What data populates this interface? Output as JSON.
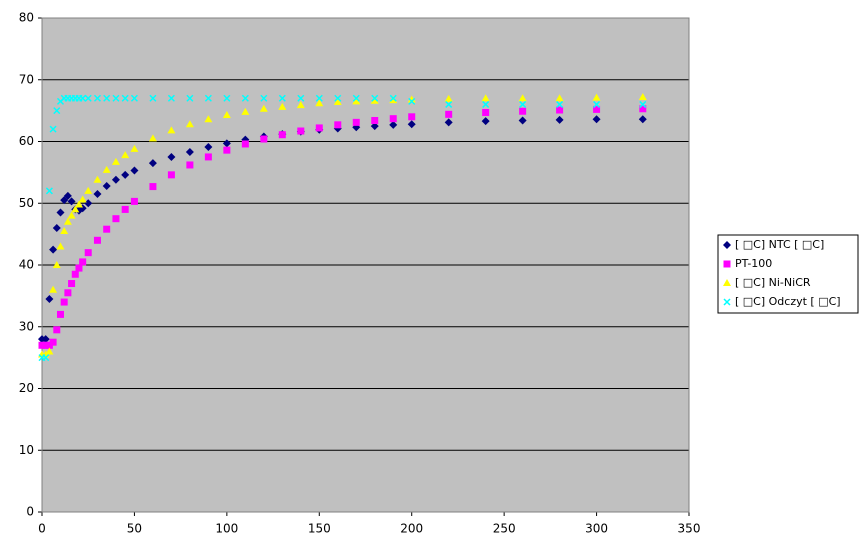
{
  "chart_data": {
    "type": "scatter",
    "x": [
      0,
      2,
      4,
      6,
      8,
      10,
      12,
      14,
      16,
      18,
      20,
      22,
      25,
      30,
      35,
      40,
      45,
      50,
      60,
      70,
      80,
      90,
      100,
      110,
      120,
      130,
      140,
      150,
      160,
      170,
      180,
      190,
      200,
      220,
      240,
      260,
      280,
      300,
      325
    ],
    "series": [
      {
        "name": "[ □C] NTC [ □C]",
        "color": "#000080",
        "marker": "diamond",
        "values": [
          28,
          28,
          34.5,
          42.5,
          46,
          48.5,
          50.5,
          51.2,
          50.3,
          49,
          48.8,
          49.2,
          50,
          51.5,
          52.8,
          53.8,
          54.6,
          55.3,
          56.5,
          57.5,
          58.3,
          59.1,
          59.7,
          60.3,
          60.8,
          61.2,
          61.6,
          61.9,
          62.1,
          62.3,
          62.5,
          62.7,
          62.8,
          63.1,
          63.3,
          63.4,
          63.5,
          63.6,
          63.6
        ]
      },
      {
        "name": "PT-100",
        "color": "#ff00ff",
        "marker": "square",
        "values": [
          27,
          27,
          27,
          27.5,
          29.5,
          32,
          34,
          35.5,
          37,
          38.5,
          39.5,
          40.5,
          42,
          44,
          45.8,
          47.5,
          49,
          50.3,
          52.7,
          54.6,
          56.2,
          57.5,
          58.6,
          59.6,
          60.4,
          61.1,
          61.7,
          62.2,
          62.7,
          63.1,
          63.4,
          63.7,
          64,
          64.4,
          64.7,
          64.9,
          65.1,
          65.2,
          65.3
        ]
      },
      {
        "name": "[ □C] Ni-NiCR",
        "color": "#ffff00",
        "marker": "triangle",
        "values": [
          25.5,
          25.5,
          26,
          36,
          40,
          43,
          45.5,
          47,
          48,
          49,
          49.8,
          50.6,
          52,
          53.8,
          55.4,
          56.7,
          57.8,
          58.8,
          60.5,
          61.8,
          62.8,
          63.6,
          64.3,
          64.8,
          65.3,
          65.6,
          65.9,
          66.2,
          66.4,
          66.5,
          66.6,
          66.7,
          66.8,
          66.9,
          67,
          67,
          67,
          67.1,
          67.2
        ]
      },
      {
        "name": "[ □C] Odczyt [ □C]",
        "color": "#00ffff",
        "marker": "x",
        "values": [
          25,
          25,
          52,
          62,
          65,
          66.5,
          67,
          67,
          67,
          67,
          67,
          67,
          67,
          67,
          67,
          67,
          67,
          67,
          67,
          67,
          67,
          67,
          67,
          67,
          67,
          67,
          67,
          67,
          67,
          67,
          67,
          67,
          66.5,
          66,
          66,
          66,
          66,
          66,
          66
        ]
      }
    ],
    "xlim": [
      0,
      350
    ],
    "xticks": [
      0,
      50,
      100,
      150,
      200,
      250,
      300,
      350
    ],
    "ylim": [
      0,
      80
    ],
    "yticks": [
      0,
      10,
      20,
      30,
      40,
      50,
      60,
      70,
      80
    ],
    "grid": true,
    "legend": "right"
  }
}
